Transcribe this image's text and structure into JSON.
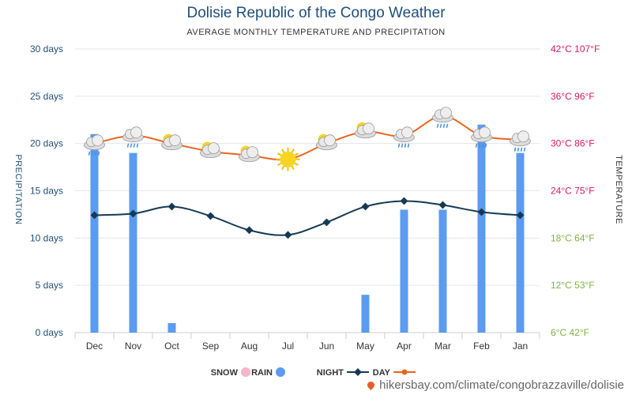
{
  "title": "Dolisie Republic of the Congo Weather",
  "subtitle": "AVERAGE MONTHLY TEMPERATURE AND PRECIPITATION",
  "footer": "hikersbay.com/climate/congobrazzaville/dolisie",
  "colors": {
    "day": "#e8641e",
    "night": "#163a54",
    "rain_bar": "#5b9bf0",
    "snow": "#f4b6c8",
    "left_axis": "#1f4e79",
    "right_axis_hot": "#d81b60",
    "right_axis_mild": "#7cb342"
  },
  "chart_data": {
    "type": "bar+line",
    "x_axis_reversed": true,
    "categories": [
      "Jan",
      "Feb",
      "Mar",
      "Apr",
      "May",
      "Jun",
      "Jul",
      "Aug",
      "Sep",
      "Oct",
      "Nov",
      "Dec"
    ],
    "precipitation": {
      "name": "RAIN",
      "ylabel": "PRECIPITATION",
      "unit": "days",
      "values": [
        19,
        22,
        13,
        13,
        4,
        0,
        0,
        0,
        0,
        1,
        19,
        21
      ],
      "ylim": [
        0,
        30
      ],
      "ticks": [
        "0 days",
        "5 days",
        "10 days",
        "15 days",
        "20 days",
        "25 days",
        "30 days"
      ]
    },
    "temperature": {
      "ylabel": "TEMPERATURE",
      "ylim_c": [
        6,
        42
      ],
      "ticks": [
        "6°C 42°F",
        "12°C 53°F",
        "18°C 64°F",
        "24°C 75°F",
        "30°C 86°F",
        "36°C 96°F",
        "42°C 107°F"
      ],
      "series": [
        {
          "name": "DAY",
          "values_c": [
            30.5,
            31,
            33.5,
            31,
            31.5,
            30,
            28,
            28.5,
            29,
            30,
            31,
            30
          ]
        },
        {
          "name": "NIGHT",
          "values_c": [
            20.9,
            21.3,
            22.2,
            22.7,
            22,
            20,
            18.4,
            19,
            20.8,
            22,
            21.1,
            20.9
          ]
        }
      ]
    },
    "weather_icons": [
      "cloud-rain-icon",
      "cloud-rain-icon",
      "cloud-rain-icon",
      "cloud-rain-icon",
      "sun-cloud-icon",
      "sun-cloud-icon",
      "sun-icon",
      "sun-cloud-icon",
      "sun-cloud-icon",
      "sun-cloud-icon",
      "cloud-rain-icon",
      "cloud-rain-icon"
    ],
    "legend": [
      "DAY",
      "NIGHT",
      "RAIN",
      "SNOW"
    ],
    "legend_position": "bottom",
    "grid": true
  }
}
